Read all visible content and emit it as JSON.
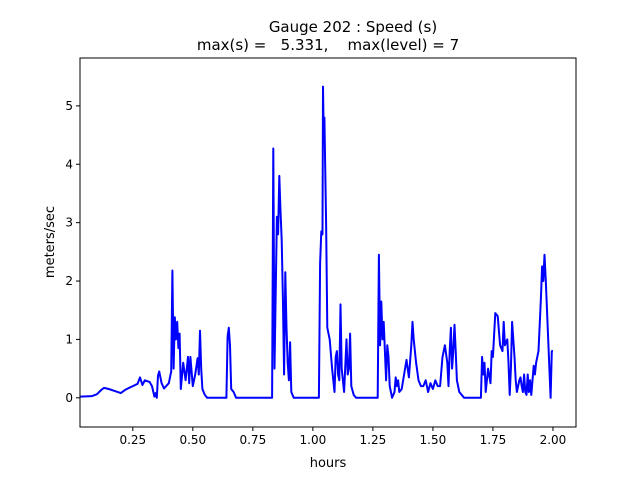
{
  "chart_data": {
    "type": "line",
    "title": "Gauge 202 : Speed (s)",
    "subtitle": "max(s) =   5.331,    max(level) = 7",
    "xlabel": "hours",
    "ylabel": "meters/sec",
    "xlim": [
      0.03,
      2.096
    ],
    "ylim": [
      -0.5,
      5.82
    ],
    "xticks": [
      0.25,
      0.5,
      0.75,
      1.0,
      1.25,
      1.5,
      1.75,
      2.0
    ],
    "xtick_labels": [
      "0.25",
      "0.50",
      "0.75",
      "1.00",
      "1.25",
      "1.50",
      "1.75",
      "2.00"
    ],
    "yticks": [
      0,
      1,
      2,
      3,
      4,
      5
    ],
    "ytick_labels": [
      "0",
      "1",
      "2",
      "3",
      "4",
      "5"
    ],
    "grid": false,
    "line_color": "#0000ff",
    "x": [
      0.03,
      0.08,
      0.1,
      0.12,
      0.13,
      0.15,
      0.18,
      0.2,
      0.22,
      0.25,
      0.27,
      0.28,
      0.29,
      0.3,
      0.32,
      0.33,
      0.34,
      0.345,
      0.35,
      0.355,
      0.36,
      0.37,
      0.38,
      0.4,
      0.41,
      0.415,
      0.42,
      0.425,
      0.43,
      0.435,
      0.44,
      0.445,
      0.45,
      0.46,
      0.47,
      0.48,
      0.485,
      0.49,
      0.5,
      0.51,
      0.52,
      0.525,
      0.53,
      0.535,
      0.54,
      0.55,
      0.56,
      0.64,
      0.645,
      0.65,
      0.655,
      0.66,
      0.67,
      0.68,
      0.83,
      0.835,
      0.84,
      0.85,
      0.855,
      0.86,
      0.865,
      0.87,
      0.875,
      0.88,
      0.885,
      0.89,
      0.895,
      0.9,
      0.905,
      0.91,
      0.92,
      1.025,
      1.03,
      1.035,
      1.04,
      1.042,
      1.045,
      1.048,
      1.055,
      1.06,
      1.07,
      1.08,
      1.09,
      1.095,
      1.1,
      1.105,
      1.11,
      1.115,
      1.12,
      1.13,
      1.14,
      1.145,
      1.15,
      1.155,
      1.16,
      1.17,
      1.18,
      1.27,
      1.275,
      1.28,
      1.285,
      1.29,
      1.295,
      1.3,
      1.305,
      1.31,
      1.315,
      1.32,
      1.33,
      1.34,
      1.345,
      1.35,
      1.355,
      1.36,
      1.37,
      1.38,
      1.39,
      1.4,
      1.41,
      1.415,
      1.42,
      1.43,
      1.44,
      1.45,
      1.46,
      1.47,
      1.48,
      1.49,
      1.5,
      1.51,
      1.52,
      1.53,
      1.54,
      1.55,
      1.56,
      1.565,
      1.57,
      1.575,
      1.58,
      1.585,
      1.59,
      1.595,
      1.6,
      1.61,
      1.62,
      1.63,
      1.7,
      1.705,
      1.71,
      1.715,
      1.72,
      1.73,
      1.74,
      1.745,
      1.75,
      1.76,
      1.77,
      1.78,
      1.79,
      1.795,
      1.8,
      1.81,
      1.815,
      1.82,
      1.825,
      1.83,
      1.84,
      1.845,
      1.85,
      1.86,
      1.865,
      1.87,
      1.875,
      1.88,
      1.885,
      1.89,
      1.895,
      1.9,
      1.905,
      1.91,
      1.92,
      1.925,
      1.93,
      1.94,
      1.95,
      1.955,
      1.96,
      1.965,
      1.97,
      1.98,
      1.99,
      1.995,
      2.0
    ],
    "y": [
      0.02,
      0.03,
      0.06,
      0.14,
      0.17,
      0.15,
      0.11,
      0.08,
      0.14,
      0.2,
      0.24,
      0.35,
      0.22,
      0.3,
      0.27,
      0.2,
      0.02,
      0.08,
      0.0,
      0.38,
      0.45,
      0.25,
      0.16,
      0.25,
      0.45,
      2.18,
      0.5,
      1.38,
      1.0,
      1.3,
      0.85,
      1.1,
      0.15,
      0.6,
      0.3,
      0.7,
      0.25,
      0.7,
      0.2,
      0.4,
      0.68,
      0.4,
      1.15,
      0.5,
      0.15,
      0.05,
      0.0,
      0.0,
      1.05,
      1.2,
      0.9,
      0.15,
      0.1,
      0.0,
      0.0,
      4.27,
      0.5,
      3.1,
      2.8,
      3.8,
      3.2,
      2.7,
      1.7,
      0.4,
      2.15,
      1.2,
      0.6,
      0.3,
      0.95,
      0.1,
      0.0,
      0.0,
      2.3,
      2.85,
      2.8,
      5.33,
      4.5,
      4.8,
      3.0,
      1.2,
      1.0,
      0.5,
      0.1,
      0.7,
      0.8,
      0.4,
      0.3,
      1.6,
      0.5,
      0.1,
      1.0,
      0.4,
      0.5,
      1.1,
      0.2,
      0.05,
      0.0,
      0.0,
      2.45,
      0.9,
      1.65,
      1.0,
      1.3,
      0.8,
      0.3,
      0.9,
      0.7,
      0.2,
      0.0,
      0.1,
      0.35,
      0.2,
      0.3,
      0.1,
      0.15,
      0.4,
      0.65,
      0.35,
      0.9,
      1.3,
      1.0,
      0.6,
      0.3,
      0.2,
      0.2,
      0.3,
      0.1,
      0.25,
      0.15,
      0.3,
      0.2,
      0.2,
      0.7,
      0.9,
      0.6,
      0.2,
      0.8,
      1.2,
      0.5,
      0.8,
      1.25,
      0.8,
      0.3,
      0.1,
      0.05,
      0.0,
      0.0,
      0.7,
      0.4,
      0.6,
      0.1,
      0.5,
      0.25,
      0.8,
      0.7,
      1.45,
      1.4,
      0.9,
      0.8,
      1.3,
      0.9,
      1.0,
      0.6,
      0.05,
      0.5,
      1.3,
      0.7,
      0.3,
      0.1,
      0.3,
      0.35,
      0.2,
      0.1,
      0.4,
      0.1,
      0.05,
      0.4,
      0.1,
      0.3,
      0.05,
      0.55,
      0.4,
      0.6,
      0.8,
      1.7,
      2.25,
      2.0,
      2.45,
      2.0,
      1.0,
      0.0,
      0.8,
      0.8
    ]
  }
}
